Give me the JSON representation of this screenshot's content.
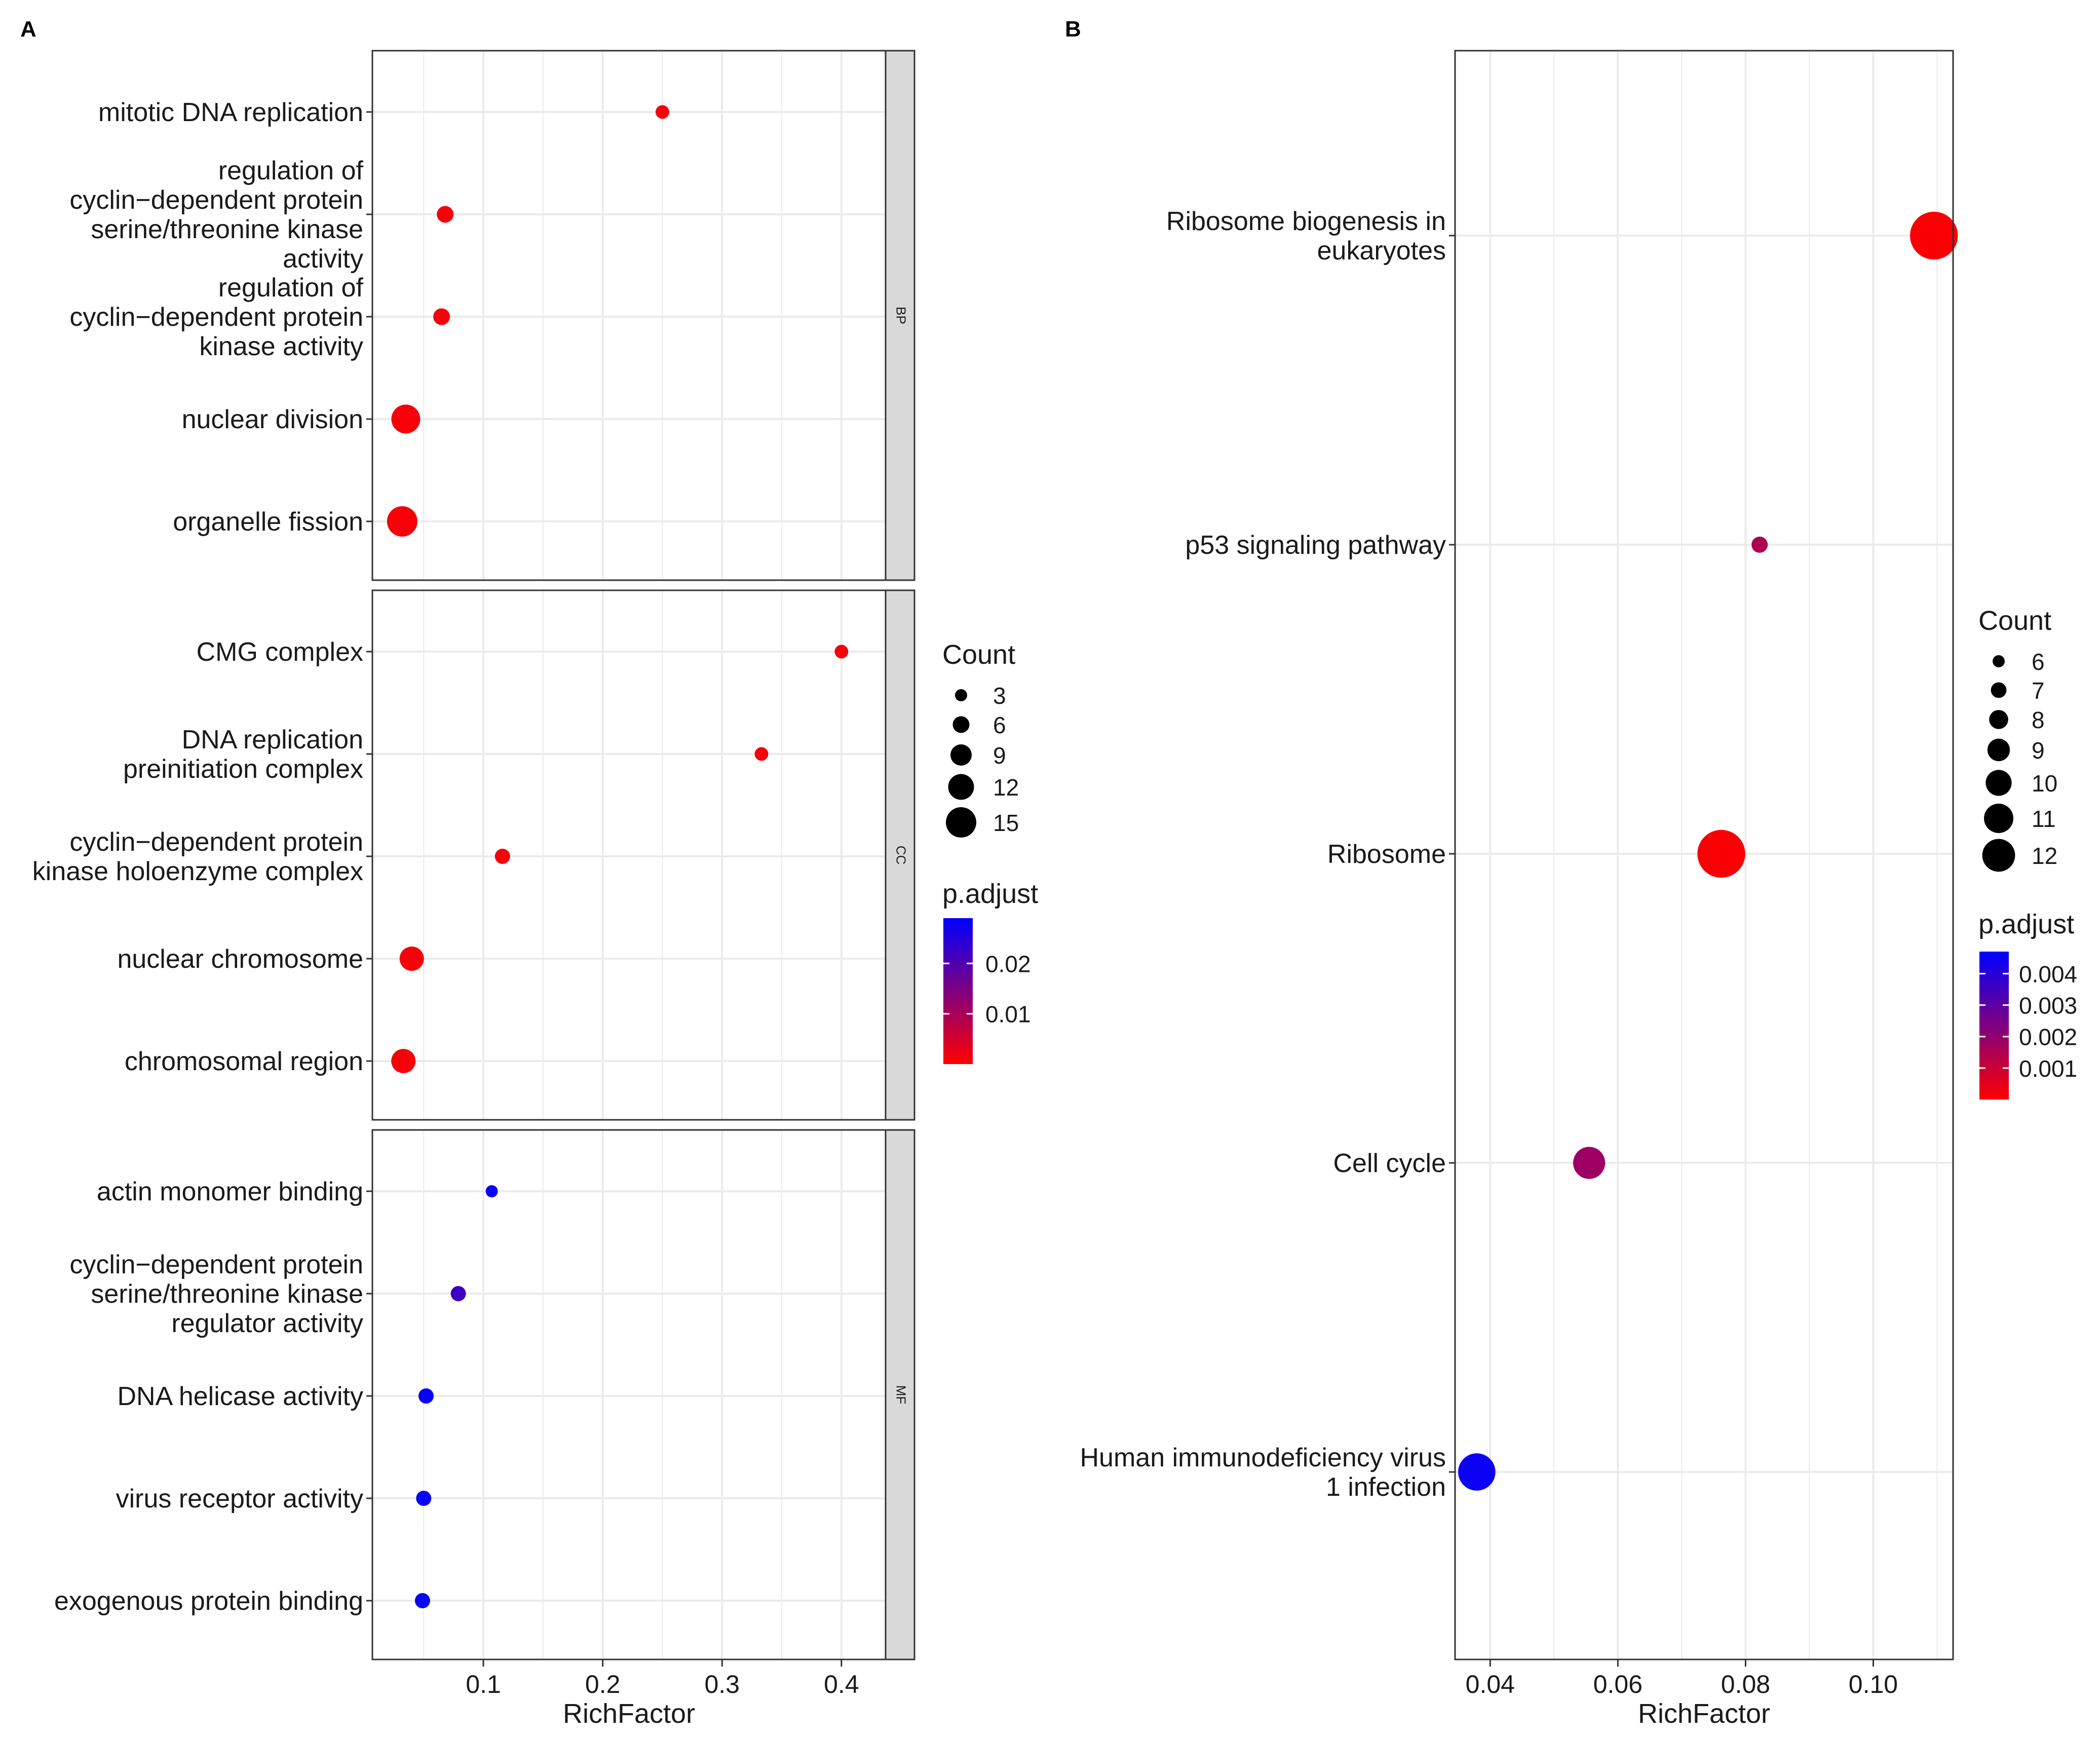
{
  "chart_data": [
    {
      "panel_label": "A",
      "type": "scatter",
      "subtype": "dotplot",
      "xlabel": "RichFactor",
      "x_ticks": [
        "0.1",
        "0.2",
        "0.3",
        "0.4"
      ],
      "x_tick_values": [
        0.1,
        0.2,
        0.3,
        0.4
      ],
      "xlim": [
        0.007,
        0.437
      ],
      "facets": [
        {
          "strip": "BP",
          "terms": [
            {
              "label": [
                "mitotic DNA replication"
              ],
              "x": 0.25,
              "count": 4,
              "p_adjust": 0.001
            },
            {
              "label": [
                "regulation of",
                "cyclin−dependent protein",
                "serine/threonine kinase",
                "activity"
              ],
              "x": 0.068,
              "count": 6,
              "p_adjust": 0.001
            },
            {
              "label": [
                "regulation of",
                "cyclin−dependent protein",
                "kinase activity"
              ],
              "x": 0.065,
              "count": 6,
              "p_adjust": 0.001
            },
            {
              "label": [
                "nuclear division"
              ],
              "x": 0.035,
              "count": 14,
              "p_adjust": 0.001
            },
            {
              "label": [
                "organelle fission"
              ],
              "x": 0.032,
              "count": 15,
              "p_adjust": 0.001
            }
          ]
        },
        {
          "strip": "CC",
          "terms": [
            {
              "label": [
                "CMG complex"
              ],
              "x": 0.4,
              "count": 4,
              "p_adjust": 0.001
            },
            {
              "label": [
                "DNA replication",
                "preinitiation complex"
              ],
              "x": 0.333,
              "count": 4,
              "p_adjust": 0.001
            },
            {
              "label": [
                "cyclin−dependent protein",
                "kinase holoenzyme complex"
              ],
              "x": 0.116,
              "count": 5,
              "p_adjust": 0.001
            },
            {
              "label": [
                "nuclear chromosome"
              ],
              "x": 0.04,
              "count": 11,
              "p_adjust": 0.001
            },
            {
              "label": [
                "chromosomal region"
              ],
              "x": 0.033,
              "count": 11,
              "p_adjust": 0.001
            }
          ]
        },
        {
          "strip": "MF",
          "terms": [
            {
              "label": [
                "actin monomer binding"
              ],
              "x": 0.107,
              "count": 3,
              "p_adjust": 0.028
            },
            {
              "label": [
                "cyclin−dependent protein",
                "serine/threonine kinase",
                "regulator activity"
              ],
              "x": 0.079,
              "count": 5,
              "p_adjust": 0.022
            },
            {
              "label": [
                "DNA helicase activity"
              ],
              "x": 0.052,
              "count": 5,
              "p_adjust": 0.028
            },
            {
              "label": [
                "virus receptor activity"
              ],
              "x": 0.05,
              "count": 5,
              "p_adjust": 0.028
            },
            {
              "label": [
                "exogenous protein binding"
              ],
              "x": 0.049,
              "count": 5,
              "p_adjust": 0.028
            }
          ]
        }
      ],
      "legend_count": {
        "title": "Count",
        "labels": [
          "3",
          "6",
          "9",
          "12",
          "15"
        ],
        "values": [
          3,
          6,
          9,
          12,
          15
        ]
      },
      "legend_color": {
        "title": "p.adjust",
        "labels": [
          "0.02",
          "0.01"
        ],
        "values": [
          0.02,
          0.01
        ],
        "range": [
          0.0,
          0.029
        ],
        "low_color": "#ff0000",
        "high_color": "#0000ff"
      }
    },
    {
      "panel_label": "B",
      "type": "scatter",
      "subtype": "dotplot",
      "xlabel": "RichFactor",
      "x_ticks": [
        "0.04",
        "0.06",
        "0.08",
        "0.10"
      ],
      "x_tick_values": [
        0.04,
        0.06,
        0.08,
        0.1
      ],
      "xlim": [
        0.0345,
        0.1125
      ],
      "terms": [
        {
          "label": [
            "Ribosome biogenesis in",
            "eukaryotes"
          ],
          "x": 0.1095,
          "count": 12,
          "p_adjust": 0.0001
        },
        {
          "label": [
            "p53 signaling pathway"
          ],
          "x": 0.0822,
          "count": 6,
          "p_adjust": 0.0015
        },
        {
          "label": [
            "Ribosome"
          ],
          "x": 0.0762,
          "count": 12,
          "p_adjust": 0.0001
        },
        {
          "label": [
            "Cell cycle"
          ],
          "x": 0.0555,
          "count": 9,
          "p_adjust": 0.0018
        },
        {
          "label": [
            "Human immunodeficiency virus",
            "1 infection"
          ],
          "x": 0.0379,
          "count": 10,
          "p_adjust": 0.0045
        }
      ],
      "legend_count": {
        "title": "Count",
        "labels": [
          "6",
          "7",
          "8",
          "9",
          "10",
          "11",
          "12"
        ],
        "values": [
          6,
          7,
          8,
          9,
          10,
          11,
          12
        ]
      },
      "legend_color": {
        "title": "p.adjust",
        "labels": [
          "0.004",
          "0.003",
          "0.002",
          "0.001"
        ],
        "values": [
          0.004,
          0.003,
          0.002,
          0.001
        ],
        "range": [
          0.0,
          0.0047
        ],
        "low_color": "#ff0000",
        "high_color": "#0000ff"
      }
    }
  ]
}
